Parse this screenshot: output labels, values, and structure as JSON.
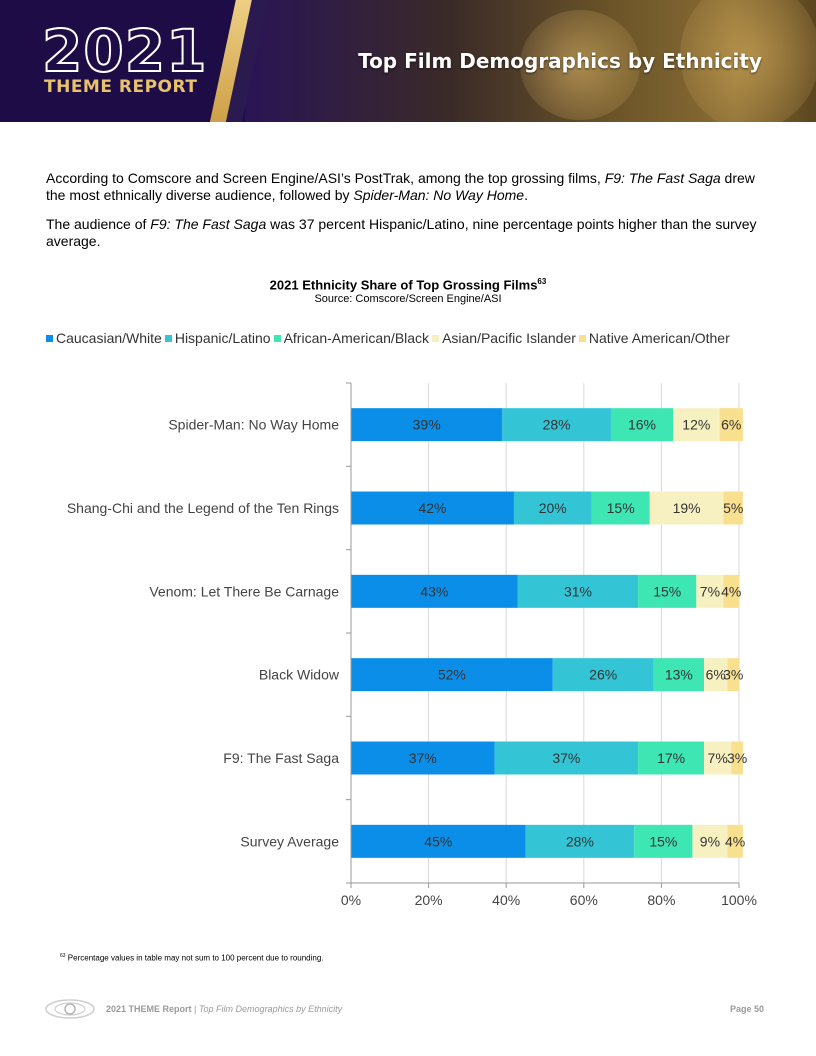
{
  "header": {
    "year": "2021",
    "report": "THEME REPORT",
    "title": "Top Film Demographics by Ethnicity"
  },
  "body": {
    "p1": [
      "According to Comscore and Screen Engine/ASI’s PostTrak, among the top grossing films, ",
      "F9: The Fast Saga",
      " drew the most ethnically diverse audience, followed by ",
      "Spider-Man: No Way Home",
      "."
    ],
    "p2": [
      "The audience of ",
      "F9: The Fast Saga",
      " was 37 percent Hispanic/Latino, nine percentage points higher than the survey average."
    ]
  },
  "chart_data": {
    "type": "bar",
    "orientation": "horizontal",
    "stacked": true,
    "title": "2021 Ethnicity Share of Top Grossing Films",
    "title_footnote": "63",
    "subtitle": "Source: Comscore/Screen Engine/ASI",
    "categories": [
      "Spider-Man: No Way Home",
      "Shang-Chi and the Legend of the Ten Rings",
      "Venom: Let There Be Carnage",
      "Black Widow",
      "F9: The Fast Saga",
      "Survey Average"
    ],
    "series": [
      {
        "name": "Caucasian/White",
        "color": "#0a8ee8",
        "values": [
          39,
          42,
          43,
          52,
          37,
          45
        ]
      },
      {
        "name": "Hispanic/Latino",
        "color": "#33c5d6",
        "values": [
          28,
          20,
          31,
          26,
          37,
          28
        ]
      },
      {
        "name": "African-American/Black",
        "color": "#3ee6b4",
        "values": [
          16,
          15,
          15,
          13,
          17,
          15
        ]
      },
      {
        "name": "Asian/Pacific Islander",
        "color": "#f7f1c2",
        "values": [
          12,
          19,
          7,
          6,
          7,
          9
        ]
      },
      {
        "name": "Native American/Other",
        "color": "#f9e08e",
        "values": [
          6,
          5,
          4,
          3,
          3,
          4
        ]
      }
    ],
    "value_suffix": "%",
    "xticks": [
      "0%",
      "20%",
      "40%",
      "60%",
      "80%",
      "100%"
    ],
    "xlim": [
      0,
      100
    ],
    "grid": true,
    "legend_position": "top"
  },
  "footnote": {
    "mark": "63",
    "text": "Percentage values in table may not sum to 100 percent due to rounding."
  },
  "footer": {
    "report": "2021 THEME Report",
    "separator": " | ",
    "subtitle": "Top Film Demographics by Ethnicity",
    "page": "Page 50"
  }
}
